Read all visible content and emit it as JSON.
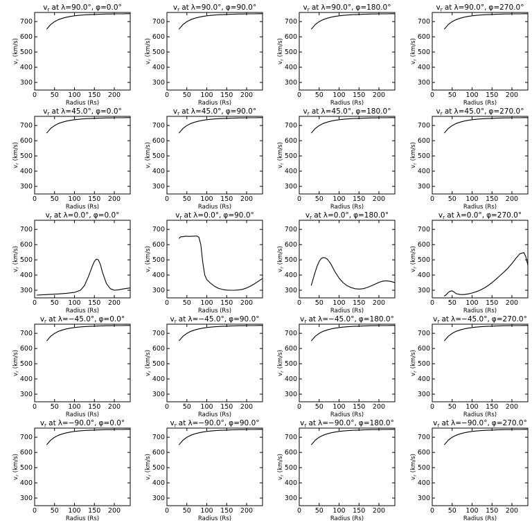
{
  "figure": {
    "rows": [
      {
        "title_prefix": "v",
        "title_sub": "r",
        "lat_label": "λ=90.0°"
      },
      {
        "title_prefix": "v",
        "title_sub": "r",
        "lat_label": "λ=45.0°"
      },
      {
        "title_prefix": "v",
        "title_sub": "r",
        "lat_label": "λ=0.0°"
      },
      {
        "title_prefix": "v",
        "title_sub": "r",
        "lat_label": "λ=−45.0°"
      },
      {
        "title_prefix": "v",
        "title_sub": "r",
        "lat_label": "λ=−90.0°"
      }
    ],
    "cols": [
      "φ=0.0°",
      "φ=90.0°",
      "φ=180.0°",
      "φ=270.0°"
    ],
    "title_at": "at",
    "xlabel": "Radius (Rs)",
    "ylabel": "v (km/s)",
    "ylabel_sub": "r"
  },
  "chart_data": {
    "type": "line",
    "grid": false,
    "xlim": [
      0,
      240
    ],
    "ylim": [
      250,
      760
    ],
    "xticks": [
      0,
      50,
      100,
      150,
      200
    ],
    "yticks": [
      300,
      400,
      500,
      600,
      700
    ],
    "panels": [
      {
        "row": 0,
        "col": 0,
        "x": [
          30,
          40,
          50,
          60,
          70,
          80,
          90,
          100,
          110,
          120,
          130,
          140,
          150,
          160,
          170,
          180,
          190,
          200,
          210,
          220,
          230,
          240
        ],
        "y": [
          650,
          680,
          700,
          713,
          722,
          729,
          734,
          738,
          741,
          743,
          745,
          746,
          747,
          748,
          749,
          750,
          750,
          751,
          751,
          751,
          752,
          752
        ]
      },
      {
        "row": 0,
        "col": 1,
        "x": [
          30,
          40,
          50,
          60,
          70,
          80,
          90,
          100,
          110,
          120,
          130,
          140,
          150,
          160,
          170,
          180,
          190,
          200,
          210,
          220,
          230,
          240
        ],
        "y": [
          650,
          680,
          700,
          713,
          722,
          729,
          734,
          738,
          741,
          743,
          745,
          746,
          747,
          748,
          749,
          750,
          750,
          751,
          751,
          751,
          752,
          752
        ]
      },
      {
        "row": 0,
        "col": 2,
        "x": [
          30,
          40,
          50,
          60,
          70,
          80,
          90,
          100,
          110,
          120,
          130,
          140,
          150,
          160,
          170,
          180,
          190,
          200,
          210,
          220,
          230,
          240
        ],
        "y": [
          650,
          680,
          700,
          713,
          722,
          729,
          734,
          738,
          741,
          743,
          745,
          746,
          747,
          748,
          749,
          750,
          750,
          751,
          751,
          751,
          752,
          752
        ]
      },
      {
        "row": 0,
        "col": 3,
        "x": [
          30,
          40,
          50,
          60,
          70,
          80,
          90,
          100,
          110,
          120,
          130,
          140,
          150,
          160,
          170,
          180,
          190,
          200,
          210,
          220,
          230,
          240
        ],
        "y": [
          650,
          680,
          700,
          713,
          722,
          729,
          734,
          738,
          741,
          743,
          745,
          746,
          747,
          748,
          749,
          750,
          750,
          751,
          751,
          751,
          752,
          752
        ]
      },
      {
        "row": 1,
        "col": 0,
        "x": [
          30,
          40,
          50,
          60,
          70,
          80,
          90,
          100,
          110,
          120,
          130,
          140,
          150,
          160,
          170,
          180,
          190,
          200,
          210,
          220,
          230,
          240
        ],
        "y": [
          650,
          680,
          700,
          713,
          722,
          729,
          734,
          738,
          741,
          743,
          745,
          746,
          747,
          748,
          749,
          750,
          750,
          751,
          751,
          751,
          752,
          752
        ]
      },
      {
        "row": 1,
        "col": 1,
        "x": [
          30,
          40,
          50,
          60,
          70,
          80,
          90,
          100,
          110,
          120,
          130,
          140,
          150,
          160,
          170,
          180,
          190,
          200,
          210,
          220,
          230,
          240
        ],
        "y": [
          650,
          680,
          700,
          713,
          722,
          729,
          734,
          738,
          741,
          743,
          745,
          746,
          747,
          748,
          749,
          750,
          750,
          751,
          751,
          751,
          752,
          752
        ]
      },
      {
        "row": 1,
        "col": 2,
        "x": [
          30,
          40,
          50,
          60,
          70,
          80,
          90,
          100,
          110,
          120,
          130,
          140,
          150,
          160,
          170,
          180,
          190,
          200,
          210,
          220,
          230,
          240
        ],
        "y": [
          650,
          680,
          700,
          713,
          722,
          729,
          734,
          738,
          741,
          743,
          745,
          746,
          747,
          748,
          749,
          750,
          750,
          751,
          751,
          751,
          752,
          752
        ]
      },
      {
        "row": 1,
        "col": 3,
        "x": [
          30,
          40,
          50,
          60,
          70,
          80,
          90,
          100,
          110,
          120,
          130,
          140,
          150,
          160,
          170,
          180,
          190,
          200,
          210,
          220,
          230,
          240
        ],
        "y": [
          650,
          680,
          700,
          713,
          722,
          729,
          734,
          738,
          741,
          743,
          745,
          746,
          747,
          748,
          749,
          750,
          750,
          751,
          751,
          751,
          752,
          752
        ]
      },
      {
        "row": 2,
        "col": 0,
        "x": [
          5,
          20,
          40,
          60,
          80,
          100,
          115,
          125,
          135,
          145,
          150,
          155,
          160,
          165,
          170,
          180,
          190,
          200,
          210,
          220,
          230,
          240
        ],
        "y": [
          268,
          270,
          273,
          276,
          280,
          286,
          300,
          330,
          390,
          460,
          490,
          505,
          500,
          470,
          420,
          345,
          310,
          300,
          303,
          308,
          312,
          315
        ]
      },
      {
        "row": 2,
        "col": 1,
        "x": [
          30,
          35,
          40,
          45,
          50,
          55,
          60,
          65,
          70,
          75,
          80,
          85,
          90,
          95,
          100,
          110,
          120,
          130,
          140,
          150,
          160,
          170,
          180,
          190,
          200,
          210,
          220,
          230,
          240
        ],
        "y": [
          640,
          652,
          652,
          655,
          655,
          654,
          655,
          655,
          656,
          656,
          650,
          600,
          480,
          400,
          370,
          345,
          325,
          312,
          305,
          301,
          300,
          300,
          302,
          306,
          315,
          328,
          343,
          360,
          378
        ]
      },
      {
        "row": 2,
        "col": 2,
        "x": [
          30,
          35,
          40,
          45,
          50,
          55,
          60,
          65,
          70,
          75,
          80,
          90,
          100,
          110,
          120,
          130,
          140,
          150,
          160,
          170,
          180,
          190,
          200,
          210,
          220,
          230,
          240
        ],
        "y": [
          330,
          375,
          420,
          460,
          490,
          508,
          515,
          513,
          505,
          490,
          470,
          420,
          380,
          350,
          330,
          318,
          310,
          308,
          310,
          318,
          328,
          340,
          352,
          360,
          362,
          358,
          350
        ]
      },
      {
        "row": 2,
        "col": 3,
        "x": [
          30,
          35,
          40,
          45,
          50,
          55,
          60,
          70,
          80,
          90,
          100,
          110,
          120,
          130,
          140,
          150,
          160,
          170,
          180,
          190,
          200,
          210,
          220,
          230,
          235,
          240
        ],
        "y": [
          262,
          270,
          285,
          294,
          296,
          288,
          278,
          272,
          272,
          276,
          282,
          290,
          300,
          314,
          330,
          350,
          372,
          396,
          420,
          446,
          476,
          510,
          540,
          548,
          520,
          465
        ]
      },
      {
        "row": 3,
        "col": 0,
        "x": [
          30,
          40,
          50,
          60,
          70,
          80,
          90,
          100,
          110,
          120,
          130,
          140,
          150,
          160,
          170,
          180,
          190,
          200,
          210,
          220,
          230,
          240
        ],
        "y": [
          650,
          680,
          700,
          713,
          722,
          729,
          734,
          738,
          741,
          743,
          745,
          746,
          747,
          748,
          749,
          750,
          750,
          751,
          751,
          751,
          752,
          752
        ]
      },
      {
        "row": 3,
        "col": 1,
        "x": [
          30,
          40,
          50,
          60,
          70,
          80,
          90,
          100,
          110,
          120,
          130,
          140,
          150,
          160,
          170,
          180,
          190,
          200,
          210,
          220,
          230,
          240
        ],
        "y": [
          650,
          680,
          700,
          713,
          722,
          729,
          734,
          738,
          741,
          743,
          745,
          746,
          747,
          748,
          749,
          750,
          750,
          751,
          751,
          751,
          752,
          752
        ]
      },
      {
        "row": 3,
        "col": 2,
        "x": [
          30,
          40,
          50,
          60,
          70,
          80,
          90,
          100,
          110,
          120,
          130,
          140,
          150,
          160,
          170,
          180,
          190,
          200,
          210,
          220,
          230,
          240
        ],
        "y": [
          650,
          680,
          700,
          713,
          722,
          729,
          734,
          738,
          741,
          743,
          745,
          746,
          747,
          748,
          749,
          750,
          750,
          751,
          751,
          751,
          752,
          752
        ]
      },
      {
        "row": 3,
        "col": 3,
        "x": [
          30,
          40,
          50,
          60,
          70,
          80,
          90,
          100,
          110,
          120,
          130,
          140,
          150,
          160,
          170,
          180,
          190,
          200,
          210,
          220,
          230,
          240
        ],
        "y": [
          650,
          680,
          700,
          713,
          722,
          729,
          734,
          738,
          741,
          743,
          745,
          746,
          747,
          748,
          749,
          750,
          750,
          751,
          751,
          751,
          752,
          752
        ]
      },
      {
        "row": 4,
        "col": 0,
        "x": [
          30,
          40,
          50,
          60,
          70,
          80,
          90,
          100,
          110,
          120,
          130,
          140,
          150,
          160,
          170,
          180,
          190,
          200,
          210,
          220,
          230,
          240
        ],
        "y": [
          650,
          680,
          700,
          713,
          722,
          729,
          734,
          738,
          741,
          743,
          745,
          746,
          747,
          748,
          749,
          750,
          750,
          751,
          751,
          751,
          752,
          752
        ]
      },
      {
        "row": 4,
        "col": 1,
        "x": [
          30,
          40,
          50,
          60,
          70,
          80,
          90,
          100,
          110,
          120,
          130,
          140,
          150,
          160,
          170,
          180,
          190,
          200,
          210,
          220,
          230,
          240
        ],
        "y": [
          650,
          680,
          700,
          713,
          722,
          729,
          734,
          738,
          741,
          743,
          745,
          746,
          747,
          748,
          749,
          750,
          750,
          751,
          751,
          751,
          752,
          752
        ]
      },
      {
        "row": 4,
        "col": 2,
        "x": [
          30,
          40,
          50,
          60,
          70,
          80,
          90,
          100,
          110,
          120,
          130,
          140,
          150,
          160,
          170,
          180,
          190,
          200,
          210,
          220,
          230,
          240
        ],
        "y": [
          650,
          680,
          700,
          713,
          722,
          729,
          734,
          738,
          741,
          743,
          745,
          746,
          747,
          748,
          749,
          750,
          750,
          751,
          751,
          751,
          752,
          752
        ]
      },
      {
        "row": 4,
        "col": 3,
        "x": [
          30,
          40,
          50,
          60,
          70,
          80,
          90,
          100,
          110,
          120,
          130,
          140,
          150,
          160,
          170,
          180,
          190,
          200,
          210,
          220,
          230,
          240
        ],
        "y": [
          650,
          680,
          700,
          713,
          722,
          729,
          734,
          738,
          741,
          743,
          745,
          746,
          747,
          748,
          749,
          750,
          750,
          751,
          751,
          751,
          752,
          752
        ]
      }
    ]
  }
}
